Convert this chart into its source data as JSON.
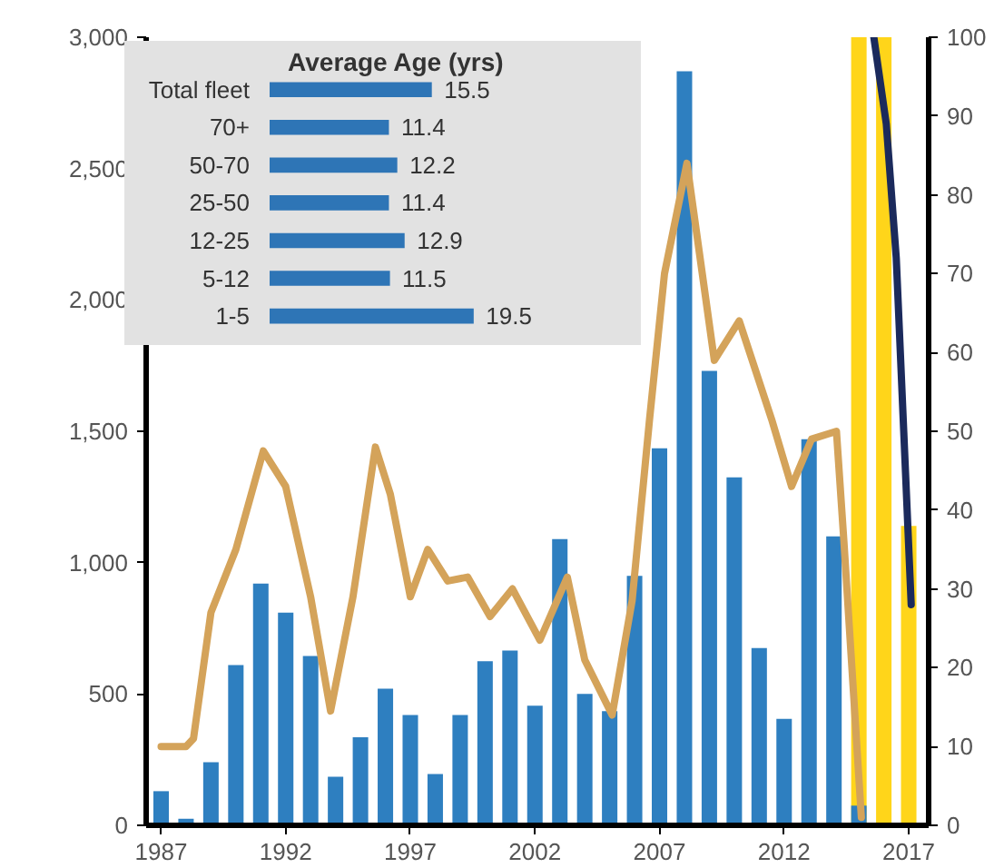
{
  "chart_data": [
    {
      "type": "bar",
      "xlim": [
        1986.4,
        2017.8
      ],
      "xticks": [
        1987,
        1992,
        1997,
        2002,
        2007,
        2012,
        2017
      ],
      "ylim": [
        0,
        3000
      ],
      "yticks": [
        0,
        {
          "value": 500,
          "label": "500"
        },
        {
          "value": 1000,
          "label": "1,000"
        },
        {
          "value": 1500,
          "label": "1,500"
        },
        {
          "value": 2000,
          "label": "2,000"
        },
        {
          "value": 2500,
          "label": "2,500"
        },
        {
          "value": 3000,
          "label": "3,000"
        }
      ],
      "y2lim": [
        0,
        100
      ],
      "y2ticks": [
        0,
        10,
        20,
        30,
        40,
        50,
        60,
        70,
        80,
        90,
        100
      ],
      "grid": false,
      "series": [
        {
          "color": "#ffd51a",
          "axis": "y2",
          "x": [
            2015,
            2016,
            2017
          ],
          "values": [
            100,
            100,
            38
          ]
        },
        {
          "color": "#2e7fc0",
          "x": [
            1987,
            1988,
            1989,
            1990,
            1991,
            1992,
            1993,
            1994,
            1995,
            1996,
            1997,
            1998,
            1999,
            2000,
            2001,
            2002,
            2003,
            2004,
            2005,
            2006,
            2007,
            2008,
            2009,
            2010,
            2011,
            2012,
            2013,
            2014,
            2015
          ],
          "values": [
            130,
            25,
            240,
            610,
            920,
            810,
            645,
            185,
            335,
            520,
            420,
            195,
            420,
            625,
            665,
            455,
            1090,
            500,
            435,
            950,
            1435,
            2870,
            1730,
            1325,
            675,
            405,
            1470,
            1100,
            75
          ]
        },
        {
          "type": "line",
          "color": "#d4a35a",
          "axis": "y2",
          "x": [
            1987,
            1988,
            1988.3,
            1989,
            1990,
            1991.1,
            1992,
            1993,
            1993.8,
            1994.7,
            1995.6,
            1996.2,
            1997,
            1997.7,
            1998.5,
            1999.3,
            2000.2,
            2001.1,
            2002.2,
            2003.3,
            2004,
            2005.1,
            2005.9,
            2006.6,
            2007.2,
            2008.1,
            2009.2,
            2010.2,
            2011.5,
            2012.3,
            2013.1,
            2014.1,
            2014.4,
            2015.1
          ],
          "values": [
            10,
            10,
            11,
            27,
            35,
            47.5,
            43,
            29,
            14.5,
            29,
            48,
            42,
            29,
            35,
            31,
            31.5,
            26.5,
            30,
            23.5,
            31.5,
            21,
            14,
            28.5,
            51.5,
            70,
            84,
            59,
            64,
            51.5,
            43,
            49,
            50,
            36,
            1
          ]
        },
        {
          "type": "line",
          "color": "#1b2a5c",
          "axis": "y2",
          "x": [
            2015.6,
            2016.1,
            2016.5,
            2016.8,
            2017.1
          ],
          "values": [
            100,
            89,
            72,
            50,
            28
          ]
        }
      ]
    },
    {
      "type": "bar",
      "orientation": "horizontal",
      "title": "Average Age (yrs)",
      "data_labels": true,
      "tick_labels": "y",
      "categories": [
        "Total fleet",
        "70+",
        "50-70",
        "25-50",
        "12-25",
        "5-12",
        "1-5"
      ],
      "values": [
        15.5,
        11.4,
        12.2,
        11.4,
        12.9,
        11.5,
        19.5
      ],
      "color": "#2e75b6"
    }
  ]
}
